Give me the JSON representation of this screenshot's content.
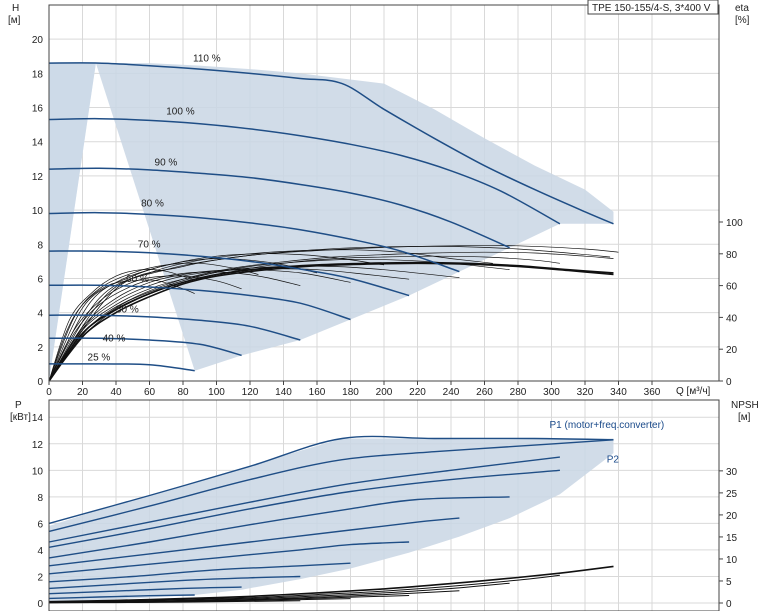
{
  "chart_data": [
    {
      "type": "line",
      "title": "TPE 150-155/4-S, 3*400 V",
      "xlabel": "Q [м³/ч]",
      "ylabel_left": "H",
      "ylabel_left_unit": "[м]",
      "ylabel_right": "eta",
      "ylabel_right_unit": "[%]",
      "xlim": [
        0,
        400
      ],
      "ylim_left": [
        0,
        22
      ],
      "ylim_right": [
        0,
        100
      ],
      "x_ticks": [
        "0",
        "20",
        "40",
        "60",
        "80",
        "100",
        "120",
        "140",
        "160",
        "180",
        "200",
        "220",
        "240",
        "260",
        "280",
        "300",
        "320",
        "340",
        "360"
      ],
      "y_ticks_left": [
        "0",
        "2",
        "4",
        "6",
        "8",
        "10",
        "12",
        "14",
        "16",
        "18",
        "20"
      ],
      "y_ticks_right": [
        "0",
        "20",
        "40",
        "60",
        "80",
        "100"
      ],
      "grid": true,
      "envelope_color": "#c9d6e4",
      "curve_color": "#1f4e86",
      "speed_curves": [
        {
          "label": "110 %",
          "label_at": [
            86,
            18.7
          ],
          "x": [
            0,
            30,
            60,
            90,
            120,
            150,
            175,
            200,
            230,
            260,
            290,
            320,
            337
          ],
          "y": [
            18.6,
            18.6,
            18.45,
            18.25,
            18.0,
            17.7,
            17.4,
            15.9,
            14.2,
            12.6,
            11.2,
            9.9,
            9.2
          ]
        },
        {
          "label": "100 %",
          "label_at": [
            70,
            15.6
          ],
          "x": [
            0,
            30,
            60,
            90,
            120,
            150,
            180,
            210,
            240,
            270,
            305
          ],
          "y": [
            15.3,
            15.35,
            15.25,
            15.05,
            14.75,
            14.35,
            13.85,
            13.2,
            12.3,
            11.1,
            9.2
          ]
        },
        {
          "label": "90 %",
          "label_at": [
            63,
            12.6
          ],
          "x": [
            0,
            30,
            60,
            90,
            120,
            150,
            180,
            210,
            240,
            275
          ],
          "y": [
            12.4,
            12.45,
            12.35,
            12.15,
            11.9,
            11.5,
            11.0,
            10.3,
            9.3,
            7.8
          ]
        },
        {
          "label": "80 %",
          "label_at": [
            55,
            10.2
          ],
          "x": [
            0,
            30,
            60,
            90,
            120,
            150,
            180,
            210,
            245
          ],
          "y": [
            9.8,
            9.85,
            9.75,
            9.55,
            9.25,
            8.85,
            8.3,
            7.6,
            6.4
          ]
        },
        {
          "label": "70 %",
          "label_at": [
            53,
            7.8
          ],
          "x": [
            0,
            30,
            60,
            90,
            120,
            150,
            180,
            215
          ],
          "y": [
            7.6,
            7.6,
            7.5,
            7.3,
            7.0,
            6.55,
            6.0,
            5.0
          ]
        },
        {
          "label": "60 %",
          "label_at": [
            46,
            5.8
          ],
          "x": [
            0,
            30,
            60,
            90,
            120,
            150,
            180
          ],
          "y": [
            5.6,
            5.6,
            5.5,
            5.3,
            5.0,
            4.55,
            3.6
          ]
        },
        {
          "label": "50 %",
          "label_at": [
            40,
            4.0
          ],
          "x": [
            0,
            30,
            60,
            90,
            120,
            150
          ],
          "y": [
            3.85,
            3.85,
            3.75,
            3.55,
            3.2,
            2.4
          ]
        },
        {
          "label": "40 %",
          "label_at": [
            32,
            2.3
          ],
          "x": [
            0,
            30,
            60,
            90,
            115
          ],
          "y": [
            2.5,
            2.5,
            2.4,
            2.15,
            1.5
          ]
        },
        {
          "label": "25 %",
          "label_at": [
            23,
            1.2
          ],
          "x": [
            0,
            30,
            60,
            87
          ],
          "y": [
            1.0,
            1.0,
            0.95,
            0.6
          ]
        }
      ],
      "envelope": {
        "x": [
          0,
          28,
          87,
          115,
          150,
          180,
          215,
          245,
          275,
          305,
          337,
          337,
          320,
          290,
          260,
          230,
          200,
          175,
          150,
          120,
          90,
          60,
          30,
          0
        ],
        "y": [
          0,
          18.6,
          0.6,
          1.5,
          2.4,
          3.6,
          5.0,
          6.4,
          7.8,
          9.2,
          9.2,
          9.9,
          11.2,
          12.6,
          14.2,
          15.9,
          17.4,
          17.7,
          18.0,
          18.25,
          18.45,
          18.6,
          18.6,
          18.6
        ]
      },
      "efficiency_curves": [
        {
          "x": [
            0,
            20,
            40,
            60,
            80,
            100,
            130,
            160,
            190,
            220,
            250,
            280,
            310,
            337
          ],
          "y": [
            0,
            30,
            45,
            55,
            62,
            67,
            71,
            73,
            74,
            74.5,
            74,
            72.5,
            70,
            68
          ]
        },
        {
          "x": [
            0,
            20,
            40,
            60,
            80,
            100,
            130,
            160,
            190,
            220,
            250,
            280,
            310,
            337
          ],
          "y": [
            0,
            28,
            43,
            53,
            61,
            66,
            70,
            72.5,
            73.5,
            74,
            73.5,
            72,
            69.5,
            67
          ]
        },
        {
          "x": [
            0,
            25,
            50,
            80,
            110,
            140,
            170,
            200,
            230,
            260,
            290,
            320,
            337
          ],
          "y": [
            0,
            35,
            52,
            64,
            71,
            75,
            78,
            79.5,
            80.5,
            81,
            80.5,
            78.5,
            77
          ]
        },
        {
          "x": [
            0,
            25,
            50,
            80,
            110,
            140,
            170,
            200,
            230,
            260,
            290,
            305
          ],
          "y": [
            0,
            33,
            50,
            62,
            69,
            74,
            77,
            78,
            78.5,
            78,
            76,
            74
          ]
        },
        {
          "x": [
            0,
            20,
            40,
            60,
            90,
            120,
            150,
            180,
            210,
            240,
            275
          ],
          "y": [
            0,
            30,
            46,
            56,
            66,
            72,
            75,
            76.5,
            76,
            74,
            70
          ]
        },
        {
          "x": [
            0,
            20,
            40,
            60,
            80,
            110,
            140,
            170,
            200,
            245
          ],
          "y": [
            0,
            32,
            48,
            58,
            64,
            70,
            72,
            72,
            70,
            65
          ]
        },
        {
          "x": [
            0,
            20,
            40,
            60,
            80,
            100,
            130,
            160,
            190,
            215
          ],
          "y": [
            0,
            33,
            50,
            60,
            66,
            69,
            70.5,
            70,
            67,
            64
          ]
        },
        {
          "x": [
            0,
            20,
            40,
            60,
            80,
            100,
            120,
            150,
            180
          ],
          "y": [
            0,
            34,
            52,
            62,
            67,
            69.5,
            70,
            68,
            62
          ]
        },
        {
          "x": [
            0,
            15,
            30,
            50,
            70,
            90,
            110,
            130,
            150
          ],
          "y": [
            0,
            30,
            48,
            60,
            66,
            68.5,
            68,
            65,
            60
          ]
        },
        {
          "x": [
            0,
            15,
            30,
            45,
            60,
            80,
            100,
            115
          ],
          "y": [
            0,
            32,
            50,
            60,
            65,
            66,
            63,
            58
          ]
        },
        {
          "x": [
            0,
            10,
            20,
            35,
            50,
            65,
            80,
            87
          ],
          "y": [
            0,
            30,
            48,
            60,
            63,
            63,
            58,
            55
          ]
        },
        {
          "x": [
            0,
            40,
            80,
            120,
            160,
            200,
            240,
            280,
            320,
            340
          ],
          "y": [
            0,
            58,
            72,
            79,
            82,
            84,
            85,
            85,
            83,
            81
          ]
        },
        {
          "x": [
            0,
            35,
            70,
            105,
            140,
            175,
            210,
            245,
            280,
            315,
            335
          ],
          "y": [
            0,
            55,
            70,
            77,
            81,
            83.5,
            84.5,
            84.5,
            83,
            80,
            78
          ]
        },
        {
          "x": [
            0,
            30,
            60,
            90,
            120,
            150,
            180,
            210,
            240,
            265
          ],
          "y": [
            0,
            52,
            68,
            76,
            80,
            82,
            82.5,
            81,
            77,
            74
          ]
        },
        {
          "x": [
            0,
            25,
            50,
            75,
            100,
            125,
            150,
            175,
            200
          ],
          "y": [
            0,
            50,
            66,
            74,
            78.5,
            80,
            79.5,
            77,
            73
          ]
        },
        {
          "x": [
            0,
            20,
            40,
            60,
            80,
            100,
            120,
            140,
            160
          ],
          "y": [
            0,
            46,
            62,
            70,
            75,
            77,
            76,
            73,
            68
          ]
        },
        {
          "x": [
            0,
            15,
            30,
            50,
            70,
            90,
            110,
            125
          ],
          "y": [
            0,
            40,
            58,
            68,
            73,
            74,
            71,
            67
          ]
        },
        {
          "x": [
            0,
            12,
            25,
            40,
            55,
            70,
            85
          ],
          "y": [
            0,
            38,
            55,
            66,
            70,
            69,
            64
          ]
        }
      ]
    },
    {
      "type": "line",
      "title": "",
      "xlabel": "",
      "ylabel_left": "P",
      "ylabel_left_unit": "[кВт]",
      "ylabel_right": "NPSH",
      "ylabel_right_unit": "[м]",
      "xlim": [
        0,
        400
      ],
      "ylim_left": [
        0,
        16
      ],
      "ylim_right": [
        0,
        35
      ],
      "y_ticks_left": [
        "0",
        "2",
        "4",
        "6",
        "8",
        "10",
        "12",
        "14"
      ],
      "y_ticks_right": [
        "0",
        "5",
        "10",
        "15",
        "20",
        "25",
        "30"
      ],
      "grid": true,
      "series_labels": [
        {
          "name": "P1 (motor+freq.converter)",
          "at": [
            300,
            13.1
          ]
        },
        {
          "name": "P2",
          "at": [
            333,
            10.5
          ]
        }
      ],
      "envelope": {
        "x": [
          0,
          27,
          175,
          337,
          337,
          305,
          275,
          245,
          215,
          180,
          150,
          115,
          87,
          0
        ],
        "y": [
          5.8,
          6.9,
          12.4,
          12.4,
          11.3,
          8.2,
          6.4,
          5.0,
          3.8,
          2.6,
          1.8,
          1.0,
          0.6,
          0
        ]
      },
      "power_curves": [
        {
          "x": [
            0,
            60,
            120,
            175,
            230,
            290,
            337
          ],
          "y": [
            6.0,
            8.1,
            10.3,
            12.4,
            12.4,
            12.4,
            12.3
          ]
        },
        {
          "x": [
            0,
            60,
            120,
            175,
            230,
            290,
            337
          ],
          "y": [
            5.4,
            7.3,
            9.3,
            10.8,
            11.4,
            11.9,
            12.3
          ]
        },
        {
          "x": [
            0,
            60,
            120,
            180,
            240,
            305
          ],
          "y": [
            4.6,
            6.1,
            7.6,
            9.0,
            10.0,
            11.0
          ]
        },
        {
          "x": [
            0,
            60,
            120,
            180,
            240,
            305
          ],
          "y": [
            4.2,
            5.6,
            7.1,
            8.4,
            9.3,
            10.0
          ]
        },
        {
          "x": [
            0,
            60,
            120,
            180,
            220,
            275
          ],
          "y": [
            3.4,
            4.6,
            5.9,
            7.1,
            7.8,
            8.0
          ]
        },
        {
          "x": [
            0,
            60,
            120,
            180,
            220,
            245
          ],
          "y": [
            2.8,
            3.7,
            4.6,
            5.5,
            6.1,
            6.4
          ]
        },
        {
          "x": [
            0,
            50,
            100,
            150,
            180,
            215
          ],
          "y": [
            2.2,
            2.8,
            3.4,
            4.0,
            4.4,
            4.6
          ]
        },
        {
          "x": [
            0,
            50,
            100,
            150,
            180
          ],
          "y": [
            1.6,
            2.0,
            2.5,
            2.8,
            3.0
          ]
        },
        {
          "x": [
            0,
            40,
            80,
            120,
            150
          ],
          "y": [
            1.1,
            1.4,
            1.7,
            1.9,
            2.0
          ]
        },
        {
          "x": [
            0,
            40,
            80,
            115
          ],
          "y": [
            0.7,
            0.9,
            1.1,
            1.2
          ]
        },
        {
          "x": [
            0,
            30,
            60,
            87
          ],
          "y": [
            0.35,
            0.45,
            0.55,
            0.6
          ]
        }
      ],
      "npsh_curves": [
        {
          "x": [
            0,
            40,
            80,
            120,
            160,
            200,
            240,
            280,
            310,
            337
          ],
          "y": [
            0.3,
            0.6,
            1.0,
            1.5,
            2.3,
            3.2,
            4.4,
            5.8,
            7.0,
            8.3
          ]
        },
        {
          "x": [
            0,
            40,
            80,
            120,
            160,
            200,
            240,
            280,
            305
          ],
          "y": [
            0.2,
            0.4,
            0.8,
            1.2,
            1.9,
            2.7,
            3.8,
            5.2,
            6.3
          ]
        },
        {
          "x": [
            0,
            40,
            80,
            120,
            160,
            200,
            240,
            275
          ],
          "y": [
            0.15,
            0.3,
            0.6,
            1.0,
            1.6,
            2.3,
            3.3,
            4.5
          ]
        },
        {
          "x": [
            0,
            40,
            80,
            120,
            160,
            200,
            245
          ],
          "y": [
            0.1,
            0.25,
            0.5,
            0.8,
            1.3,
            1.9,
            2.8
          ]
        },
        {
          "x": [
            0,
            40,
            80,
            120,
            160,
            215
          ],
          "y": [
            0.1,
            0.2,
            0.4,
            0.7,
            1.1,
            1.7
          ]
        },
        {
          "x": [
            0,
            40,
            80,
            120,
            180
          ],
          "y": [
            0.05,
            0.15,
            0.3,
            0.55,
            1.0
          ]
        },
        {
          "x": [
            0,
            40,
            80,
            150
          ],
          "y": [
            0.05,
            0.1,
            0.2,
            0.5
          ]
        }
      ]
    }
  ]
}
